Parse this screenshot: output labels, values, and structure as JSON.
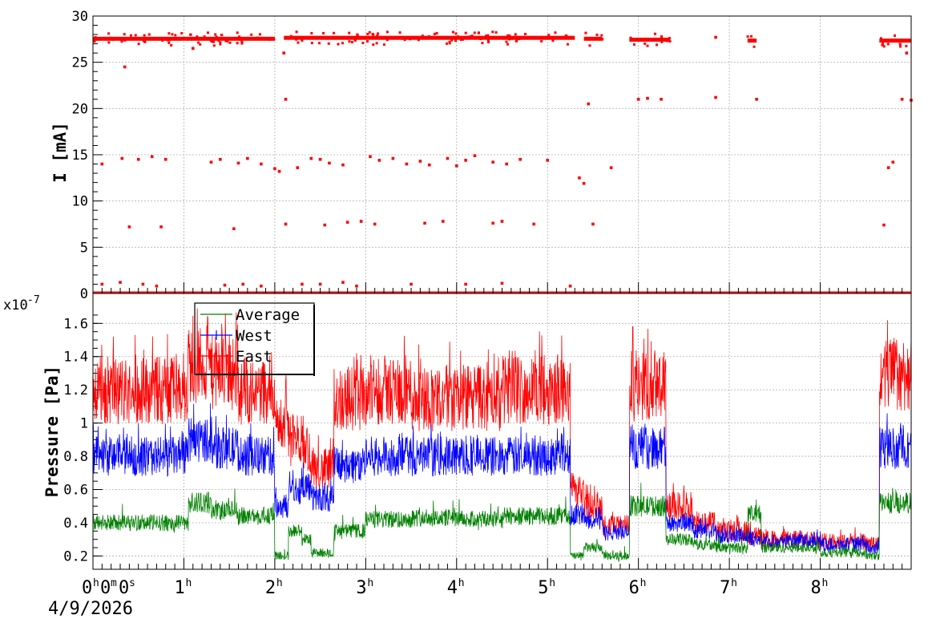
{
  "chart_data": [
    {
      "type": "scatter",
      "title": "",
      "ylabel": "I [mA]",
      "xlabel": "",
      "ylim": [
        0,
        30
      ],
      "yticks": [
        0,
        5,
        10,
        15,
        20,
        25,
        30
      ],
      "xlim_hours": [
        0,
        9
      ],
      "grid": true,
      "series": [
        {
          "color": "#ff0000",
          "points": [
            [
              0.05,
              27.5
            ],
            [
              0.2,
              27.6
            ],
            [
              0.35,
              27.4
            ],
            [
              0.1,
              14.0
            ],
            [
              0.32,
              14.6
            ],
            [
              0.5,
              14.5
            ],
            [
              0.65,
              14.8
            ],
            [
              0.8,
              14.5
            ],
            [
              0.4,
              7.2
            ],
            [
              0.75,
              7.2
            ],
            [
              0.1,
              1.0
            ],
            [
              0.3,
              1.2
            ],
            [
              0.55,
              1.0
            ],
            [
              0.7,
              0.8
            ],
            [
              0.35,
              24.5
            ],
            [
              1.1,
              26.5
            ],
            [
              1.3,
              14.2
            ],
            [
              1.4,
              14.5
            ],
            [
              1.6,
              14.1
            ],
            [
              1.7,
              14.6
            ],
            [
              1.85,
              14.0
            ],
            [
              1.45,
              0.9
            ],
            [
              1.65,
              1.0
            ],
            [
              1.55,
              7.0
            ],
            [
              1.85,
              0.8
            ],
            [
              2.0,
              13.5
            ],
            [
              2.05,
              13.2
            ],
            [
              2.1,
              26.0
            ],
            [
              2.12,
              21.0
            ],
            [
              2.12,
              7.5
            ],
            [
              2.25,
              13.6
            ],
            [
              2.4,
              14.6
            ],
            [
              2.5,
              14.5
            ],
            [
              2.6,
              14.1
            ],
            [
              2.75,
              13.9
            ],
            [
              2.55,
              7.4
            ],
            [
              2.8,
              7.7
            ],
            [
              2.3,
              1.0
            ],
            [
              2.5,
              1.0
            ],
            [
              2.75,
              1.2
            ],
            [
              2.9,
              0.8
            ],
            [
              2.95,
              7.8
            ],
            [
              3.05,
              14.8
            ],
            [
              3.15,
              14.4
            ],
            [
              3.3,
              14.6
            ],
            [
              3.45,
              14.0
            ],
            [
              3.6,
              14.3
            ],
            [
              3.7,
              13.9
            ],
            [
              3.1,
              7.5
            ],
            [
              3.5,
              1.0
            ],
            [
              3.65,
              7.6
            ],
            [
              3.85,
              7.8
            ],
            [
              3.9,
              14.6
            ],
            [
              4.0,
              13.8
            ],
            [
              4.1,
              14.4
            ],
            [
              4.2,
              14.9
            ],
            [
              4.4,
              14.2
            ],
            [
              4.55,
              14.0
            ],
            [
              4.7,
              14.5
            ],
            [
              4.4,
              7.6
            ],
            [
              4.5,
              7.8
            ],
            [
              4.85,
              7.5
            ],
            [
              4.1,
              1.0
            ],
            [
              4.5,
              1.1
            ],
            [
              5.0,
              14.4
            ],
            [
              5.25,
              0.8
            ],
            [
              5.35,
              12.5
            ],
            [
              5.4,
              11.9
            ],
            [
              5.45,
              20.5
            ],
            [
              5.5,
              7.5
            ],
            [
              5.6,
              27.5
            ],
            [
              5.7,
              13.6
            ],
            [
              6.0,
              21.0
            ],
            [
              6.1,
              21.1
            ],
            [
              6.25,
              21.0
            ],
            [
              6.85,
              21.2
            ],
            [
              7.3,
              21.0
            ],
            [
              7.25,
              27.4
            ],
            [
              6.85,
              27.7
            ],
            [
              8.9,
              21.0
            ],
            [
              9.0,
              20.9
            ],
            [
              8.7,
              7.4
            ],
            [
              8.75,
              13.6
            ],
            [
              8.8,
              14.2
            ],
            [
              8.95,
              26.0
            ]
          ],
          "bands": [
            [
              0.0,
              2.0,
              27.5
            ],
            [
              2.1,
              5.3,
              27.6
            ],
            [
              5.4,
              5.6,
              27.5
            ],
            [
              5.9,
              6.35,
              27.4
            ],
            [
              7.2,
              7.3,
              27.3
            ],
            [
              8.65,
              9.0,
              27.3
            ]
          ],
          "zero_bands": [
            [
              0.0,
              9.0,
              0.0
            ]
          ]
        }
      ]
    },
    {
      "type": "line",
      "title": "",
      "ylabel": "Pressure [Pa]",
      "xlabel": "",
      "yexponent": "x10",
      "yexponent_power": "-7",
      "ylim": [
        0.12,
        1.78
      ],
      "yticks": [
        0.2,
        0.4,
        0.6,
        0.8,
        1,
        1.2,
        1.4,
        1.6
      ],
      "ytick_labels": [
        "0.2",
        "0.4",
        "0.6",
        "0.8",
        "1",
        "1.2",
        "1.4",
        "1.6"
      ],
      "xticks_hours": [
        0,
        1,
        2,
        3,
        4,
        5,
        6,
        7,
        8
      ],
      "xtick_main": [
        "0",
        "1",
        "2",
        "3",
        "4",
        "5",
        "6",
        "7",
        "8"
      ],
      "xtick_sup": "h",
      "xtick_zero_extra": "0m0s",
      "xlim_hours": [
        0,
        9
      ],
      "date_label": "4/9/2026",
      "grid": true,
      "legend": {
        "placement": "top-left",
        "entries": [
          {
            "name": "Average",
            "color": "#008000"
          },
          {
            "name": "West",
            "color": "#0000ff"
          },
          {
            "name": "East",
            "color": "#ff0000"
          }
        ]
      },
      "series": [
        {
          "name": "East",
          "color": "#ff0000",
          "segments": [
            [
              0.0,
              1.05,
              1.45,
              1.0
            ],
            [
              1.05,
              1.05,
              1.45,
              1.3
            ],
            [
              1.3,
              1.05,
              1.45,
              0.85
            ],
            [
              1.6,
              1.0,
              1.45,
              1.0
            ],
            [
              2.0,
              0.4,
              1.1,
              0.35
            ],
            [
              2.3,
              1.0,
              1.35,
              0.3
            ],
            [
              2.5,
              0.7,
              0.8,
              0.4
            ],
            [
              2.65,
              1.05,
              1.45,
              1.0
            ],
            [
              3.0,
              1.1,
              1.45,
              1.0
            ],
            [
              3.5,
              1.05,
              1.4,
              1.0
            ],
            [
              4.0,
              1.05,
              1.4,
              1.0
            ],
            [
              4.5,
              1.05,
              1.45,
              1.0
            ],
            [
              5.25,
              0.45,
              1.4,
              0.15
            ],
            [
              5.4,
              0.4,
              1.35,
              0.4
            ],
            [
              5.6,
              0.4,
              1.3,
              0.2
            ],
            [
              5.9,
              1.22,
              1.28,
              0.45
            ],
            [
              6.3,
              0.4,
              0.6,
              0.45
            ],
            [
              6.75,
              0.33,
              1.3,
              0.9
            ],
            [
              7.2,
              0.3,
              1.3,
              0.75
            ],
            [
              7.35,
              0.3,
              0.35,
              1.3
            ],
            [
              8.65,
              1.28,
              1.65,
              0.35
            ]
          ],
          "levels": [
            [
              0.0,
              1.2
            ],
            [
              1.05,
              1.35
            ],
            [
              1.3,
              1.3
            ],
            [
              1.6,
              1.2
            ],
            [
              2.0,
              1.0
            ],
            [
              2.15,
              0.9
            ],
            [
              2.3,
              0.85
            ],
            [
              2.4,
              0.72
            ],
            [
              2.65,
              1.15
            ],
            [
              3.0,
              1.2
            ],
            [
              3.5,
              1.15
            ],
            [
              4.0,
              1.15
            ],
            [
              4.5,
              1.2
            ],
            [
              5.1,
              1.2
            ],
            [
              5.25,
              0.6
            ],
            [
              5.4,
              0.5
            ],
            [
              5.6,
              0.38
            ],
            [
              5.9,
              1.22
            ],
            [
              6.3,
              0.5
            ],
            [
              6.6,
              0.4
            ],
            [
              6.85,
              0.35
            ],
            [
              7.2,
              0.32
            ],
            [
              7.35,
              0.3
            ],
            [
              8.0,
              0.29
            ],
            [
              8.5,
              0.27
            ],
            [
              8.65,
              1.3
            ],
            [
              9.0,
              1.25
            ]
          ]
        },
        {
          "name": "West",
          "color": "#0000ff",
          "levels": [
            [
              0.0,
              0.8
            ],
            [
              1.05,
              0.9
            ],
            [
              1.3,
              0.85
            ],
            [
              1.6,
              0.8
            ],
            [
              2.0,
              0.5
            ],
            [
              2.15,
              0.6
            ],
            [
              2.3,
              0.62
            ],
            [
              2.4,
              0.55
            ],
            [
              2.65,
              0.75
            ],
            [
              3.0,
              0.8
            ],
            [
              3.5,
              0.8
            ],
            [
              4.0,
              0.8
            ],
            [
              4.5,
              0.8
            ],
            [
              5.1,
              0.82
            ],
            [
              5.25,
              0.45
            ],
            [
              5.4,
              0.42
            ],
            [
              5.6,
              0.34
            ],
            [
              5.9,
              0.85
            ],
            [
              6.3,
              0.4
            ],
            [
              6.6,
              0.35
            ],
            [
              6.85,
              0.32
            ],
            [
              7.2,
              0.3
            ],
            [
              7.35,
              0.29
            ],
            [
              8.0,
              0.27
            ],
            [
              8.5,
              0.25
            ],
            [
              8.65,
              0.85
            ],
            [
              9.0,
              0.82
            ]
          ]
        },
        {
          "name": "Average",
          "color": "#008000",
          "levels": [
            [
              0.0,
              0.4
            ],
            [
              1.05,
              0.52
            ],
            [
              1.3,
              0.48
            ],
            [
              1.6,
              0.44
            ],
            [
              2.0,
              0.2
            ],
            [
              2.15,
              0.35
            ],
            [
              2.3,
              0.3
            ],
            [
              2.4,
              0.22
            ],
            [
              2.65,
              0.35
            ],
            [
              3.0,
              0.42
            ],
            [
              3.5,
              0.43
            ],
            [
              4.0,
              0.42
            ],
            [
              4.5,
              0.44
            ],
            [
              5.1,
              0.44
            ],
            [
              5.25,
              0.2
            ],
            [
              5.4,
              0.25
            ],
            [
              5.6,
              0.2
            ],
            [
              5.9,
              0.5
            ],
            [
              6.3,
              0.3
            ],
            [
              6.6,
              0.27
            ],
            [
              6.85,
              0.25
            ],
            [
              7.2,
              0.45
            ],
            [
              7.35,
              0.25
            ],
            [
              8.0,
              0.22
            ],
            [
              8.5,
              0.2
            ],
            [
              8.65,
              0.52
            ],
            [
              9.0,
              0.52
            ]
          ]
        }
      ]
    }
  ]
}
